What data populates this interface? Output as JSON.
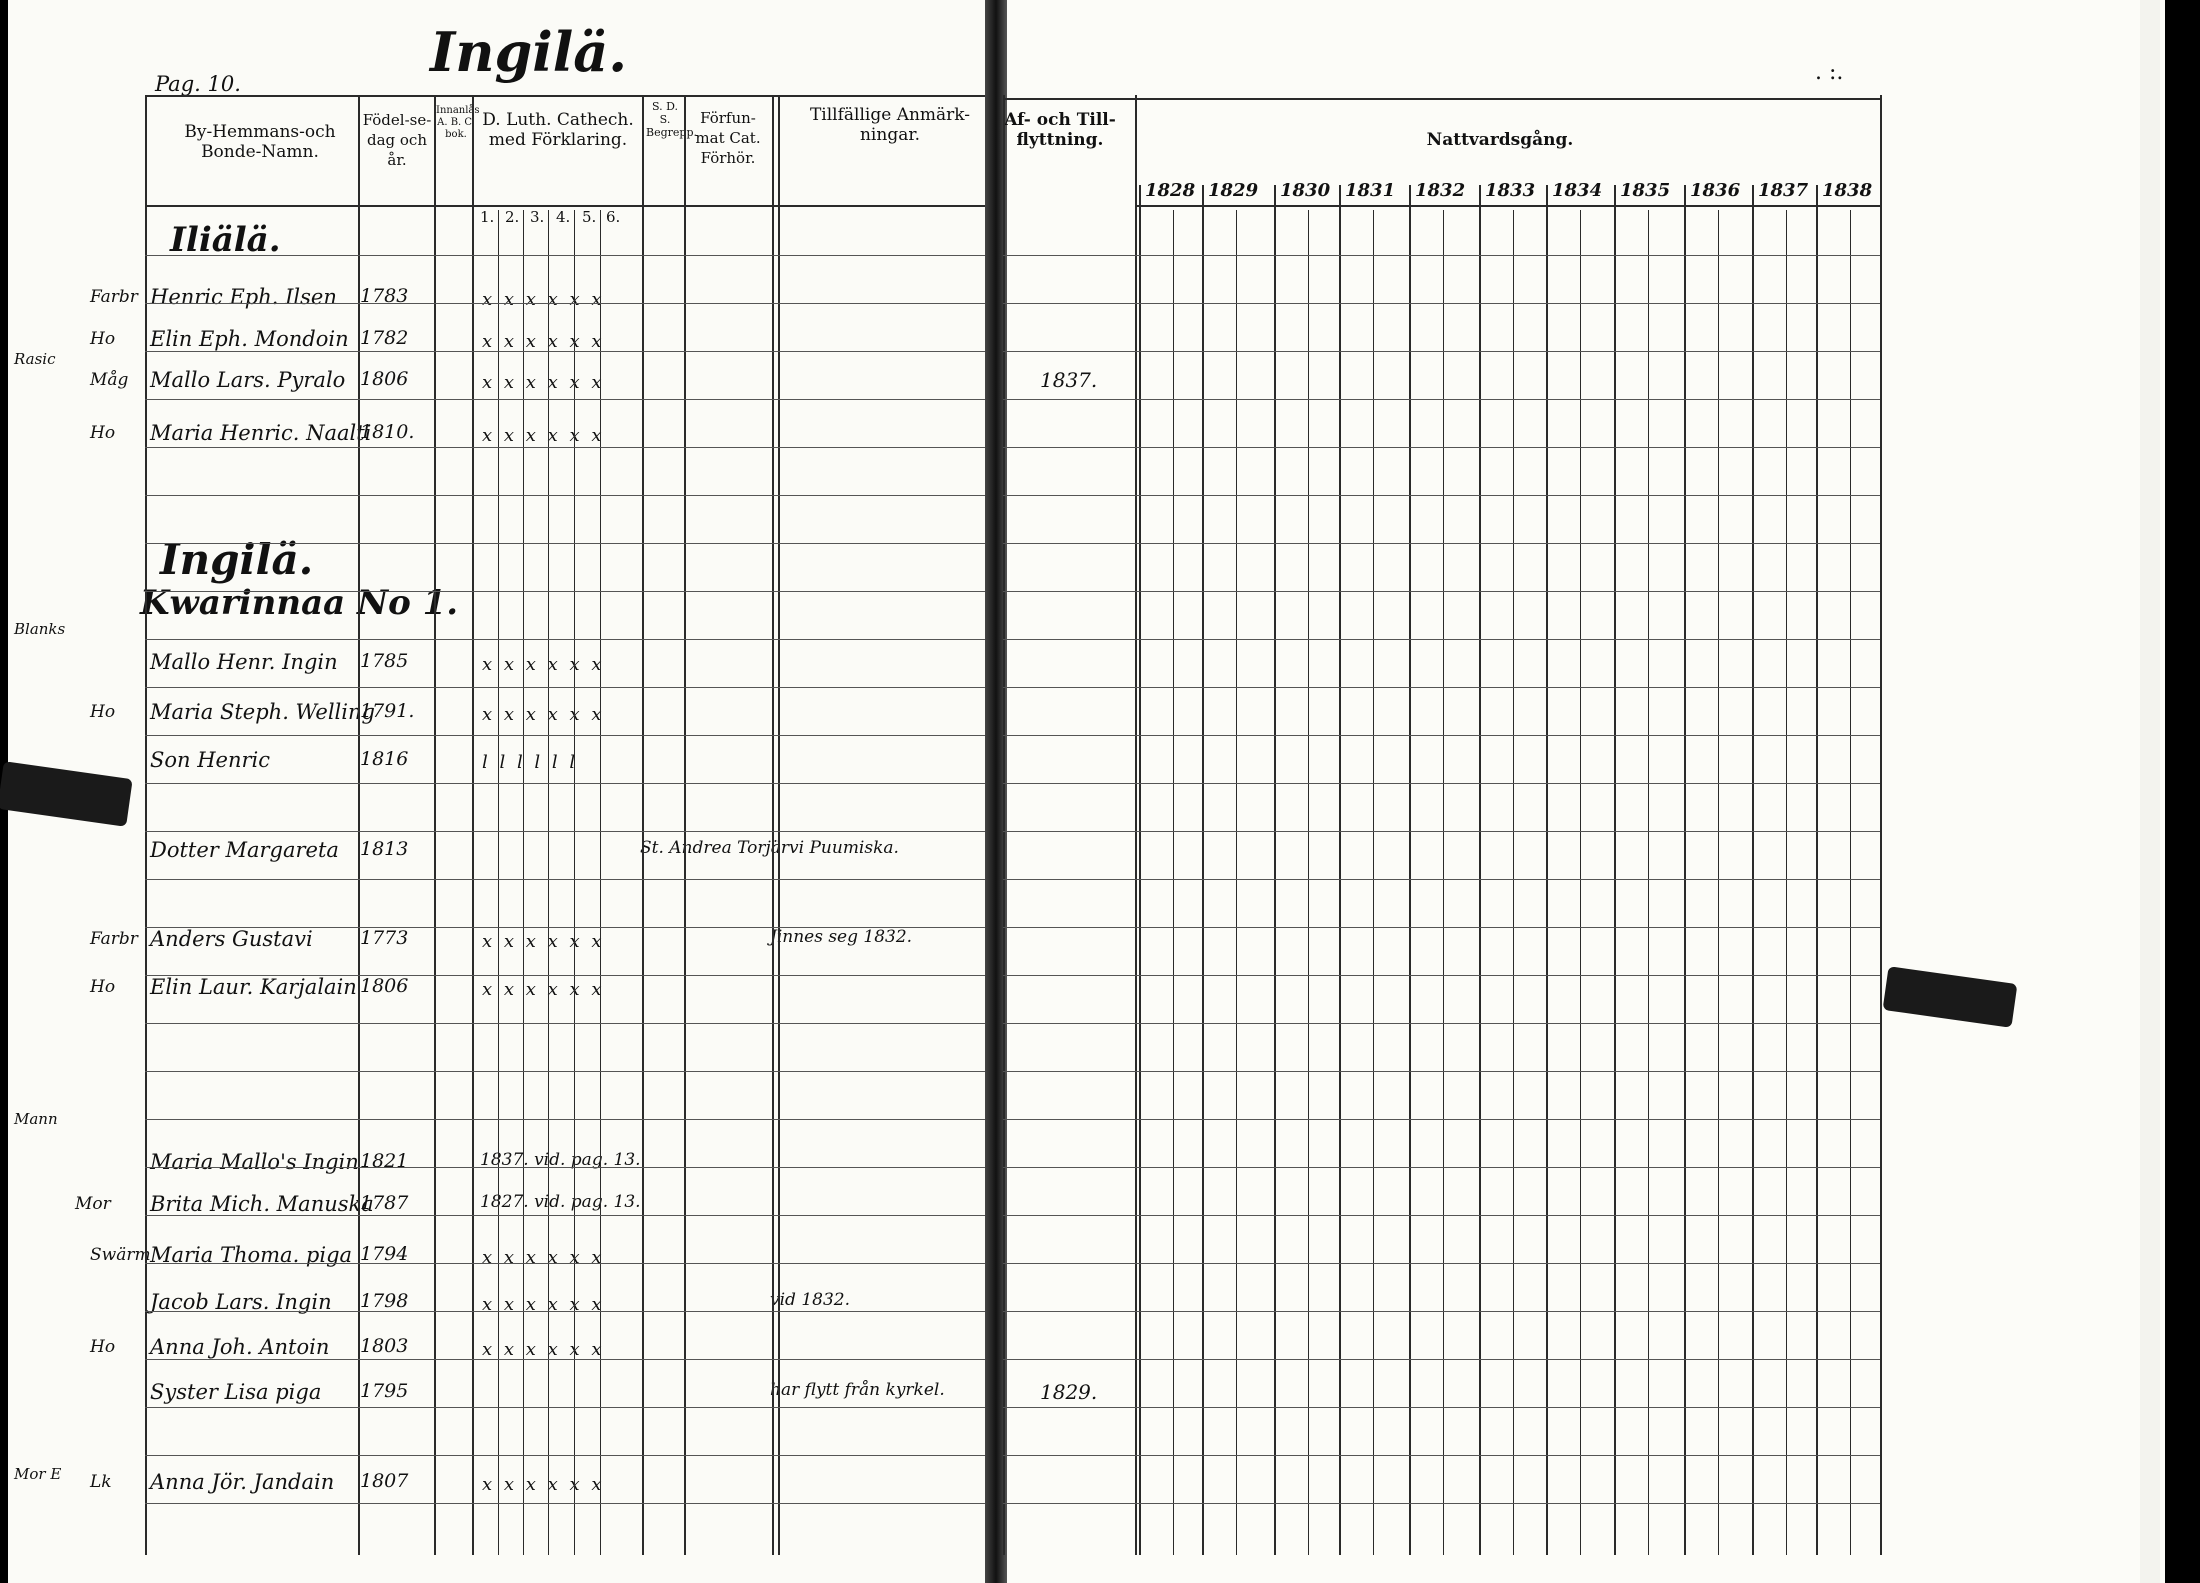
{
  "page_label": "Pag. 10.",
  "page_title": "Ingilä.",
  "corner_mark": ". :.",
  "headers": {
    "by_hemmans": "By-Hemmans-och Bonde-Namn.",
    "fodel": "Födel-se-dag och år.",
    "ab_bok": "Innanlås A. B. C. bok.",
    "luth": "D. Luth. Cathech. med Förklaring.",
    "luth_cols": [
      "1.",
      "2.",
      "3.",
      "4.",
      "5.",
      "6."
    ],
    "sd_begrepp": "S. D. S. Begrepp.",
    "forfun": "Förfun-mat Cat. Förhör.",
    "tillfallige": "Tillfällige Anmärk-ningar.",
    "af_och_till": "Af- och Till-flyttning.",
    "nattvard": "Nattvardsgång."
  },
  "years": [
    "1828",
    "1829",
    "1830",
    "1831",
    "1832",
    "1833",
    "1834",
    "1835",
    "1836",
    "1837",
    "1838"
  ],
  "sections": {
    "village_a": "Iliälä.",
    "village_b": "Ingilä.",
    "farm_b": "Kwarinnaa  No 1."
  },
  "rows": [
    {
      "margin": "Farbr",
      "name": "Henric Eph. Ilsen",
      "born": "1783",
      "marks": "x x x x x x"
    },
    {
      "margin": "Ho",
      "name": "Elin Eph. Mondoin",
      "born": "1782",
      "marks": "x x x x x x"
    },
    {
      "margin": "Måg",
      "name": "Mallo Lars. Pyralo",
      "born": "1806",
      "marks": "x x x x x x",
      "move": "1837."
    },
    {
      "margin": "Ho",
      "name": "Maria Henric. Naalti",
      "born": "1810.",
      "marks": "x x x x x x"
    },
    {
      "margin": "",
      "name": "Mallo Henr. Ingin",
      "born": "1785",
      "marks": "x x x x x x"
    },
    {
      "margin": "Ho",
      "name": "Maria Steph. Welling",
      "born": "1791.",
      "marks": "x x x x x x"
    },
    {
      "margin": "",
      "name": "Son Henric",
      "born": "1816",
      "marks": "l l l l l l"
    },
    {
      "margin": "",
      "name": "Dotter Margareta",
      "born": "1813",
      "marks": "",
      "note": "St. Andrea Torjärvi Puumiska."
    },
    {
      "margin": "Farbr",
      "name": "Anders Gustavi",
      "born": "1773",
      "marks": "x x x x x x",
      "note": "Jinnes seg 1832."
    },
    {
      "margin": "Ho",
      "name": "Elin Laur. Karjalain",
      "born": "1806",
      "marks": "x x x x x x"
    },
    {
      "margin": "",
      "name": "Maria Mallo's Ingin",
      "born": "1821",
      "marks": "",
      "note": "1837. vid. pag. 13."
    },
    {
      "margin": "Mor",
      "name": "Brita Mich. Manuska",
      "born": "1787",
      "marks": "",
      "note": "1827. vid. pag. 13."
    },
    {
      "margin": "Swärm",
      "name": "Maria Thoma. piga",
      "born": "1794",
      "marks": "x x x x x x"
    },
    {
      "margin": "",
      "name": "Jacob Lars. Ingin",
      "born": "1798",
      "marks": "x x x x x x",
      "note": "vid 1832."
    },
    {
      "margin": "Ho",
      "name": "Anna Joh. Antoin",
      "born": "1803",
      "marks": "x x x x x x"
    },
    {
      "margin": "",
      "name": "Syster Lisa piga",
      "born": "1795",
      "marks": "",
      "note": "har flytt från kyrkel.",
      "move": "1829."
    },
    {
      "margin": "Lk",
      "name": "Anna Jör. Jandain",
      "born": "1807",
      "marks": "x x x x x x"
    }
  ],
  "left_margin_notes": [
    "Rasic",
    "Blanks",
    "Mann",
    "Mor E"
  ]
}
